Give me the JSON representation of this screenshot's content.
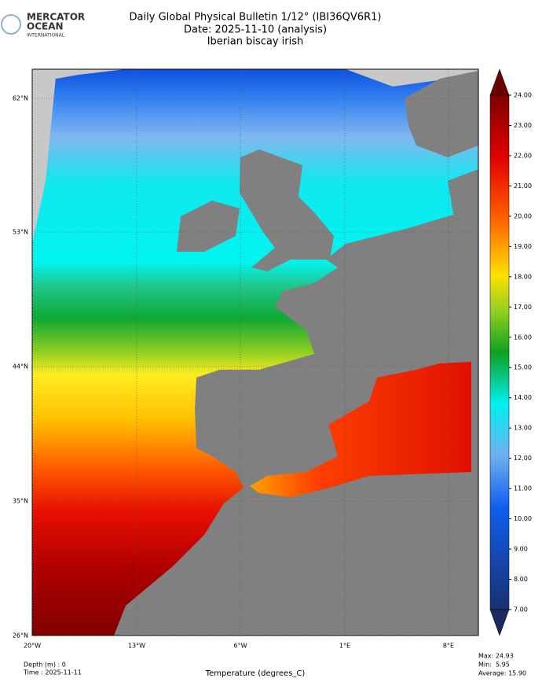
{
  "logo": {
    "line1": "MERCATOR",
    "line2": "OCEAN",
    "line3": "INTERNATIONAL"
  },
  "header": {
    "title": "Daily Global Physical Bulletin 1/12° (IBI36QV6R1)",
    "date": "Date: 2025-11-10 (analysis)",
    "region": "Iberian biscay irish"
  },
  "map": {
    "lat_labels": [
      "62°N",
      "53°N",
      "44°N",
      "35°N",
      "26°N"
    ],
    "lon_labels": [
      "20°W",
      "13°W",
      "6°W",
      "1°E",
      "8°E"
    ]
  },
  "colorbar": {
    "label": "Temperature (degrees_C)",
    "ticks": [
      {
        "value": 24,
        "label": "24.00"
      },
      {
        "value": 23,
        "label": "23.00"
      },
      {
        "value": 22,
        "label": "22.00"
      },
      {
        "value": 21,
        "label": "21.00"
      },
      {
        "value": 20,
        "label": "20.00"
      },
      {
        "value": 19,
        "label": "19.00"
      },
      {
        "value": 18,
        "label": "18.00"
      },
      {
        "value": 17,
        "label": "17.00"
      },
      {
        "value": 16,
        "label": "16.00"
      },
      {
        "value": 15,
        "label": "15.00"
      },
      {
        "value": 14,
        "label": "14.00"
      },
      {
        "value": 13,
        "label": "13.00"
      },
      {
        "value": 12,
        "label": "12.00"
      },
      {
        "value": 11,
        "label": "11.00"
      },
      {
        "value": 10,
        "label": "10.00"
      },
      {
        "value": 9,
        "label": "9.00"
      },
      {
        "value": 8,
        "label": "8.00"
      },
      {
        "value": 7,
        "label": "7.00"
      }
    ]
  },
  "footer": {
    "depth": "Depth (m) : 0",
    "time": "Time : 2025-11-11",
    "max": "Max: 24.93",
    "min": "Min:  5.95",
    "average": "Average: 15.90"
  }
}
